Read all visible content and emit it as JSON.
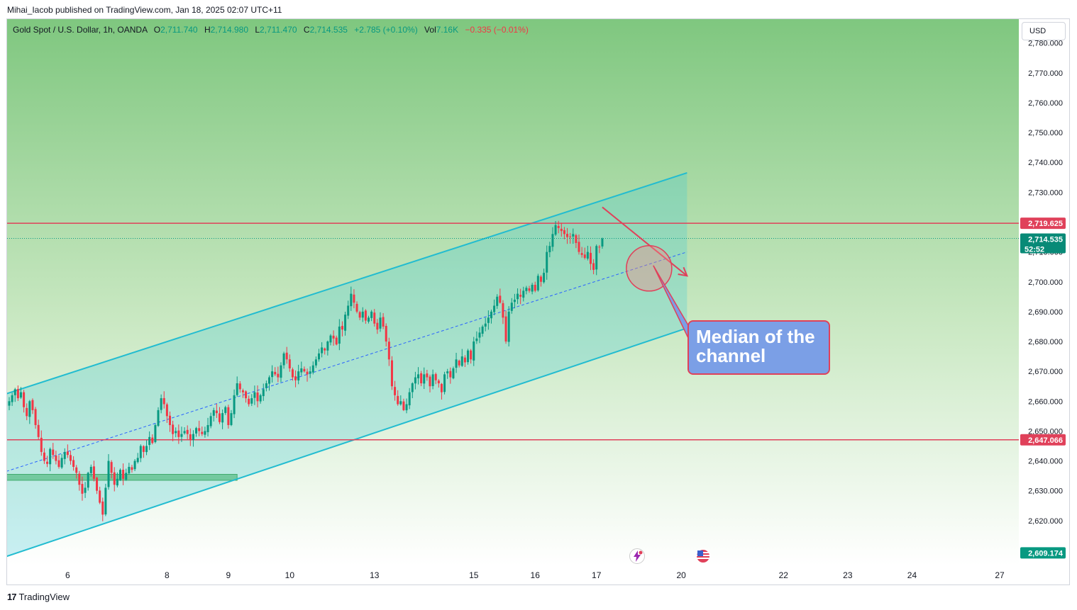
{
  "publisher": "Mihai_Iacob published on TradingView.com, Jan 18, 2025 02:07 UTC+11",
  "header": {
    "symbol": "Gold Spot / U.S. Dollar, 1h, OANDA",
    "o_label": "O",
    "o": "2,711.740",
    "h_label": "H",
    "h": "2,714.980",
    "l_label": "L",
    "l": "2,711.470",
    "c_label": "C",
    "c": "2,714.535",
    "change": "+2.785 (+0.10%)",
    "vol_label": "Vol",
    "vol": "7.16K",
    "vol_change": "−0.335 (−0.01%)"
  },
  "currency": "USD",
  "annotation": {
    "line1": "Median of the",
    "line2": "channel"
  },
  "footer": {
    "logo": "17",
    "brand": "TradingView"
  },
  "colors": {
    "up": "#089981",
    "down": "#f23645",
    "channel": "#22bcd0",
    "level": "#e0415a",
    "median": "#2962ff",
    "support_zone": "#66bb6a"
  },
  "chart_data": {
    "type": "candlestick",
    "title": "Gold Spot / U.S. Dollar, 1h, OANDA",
    "ylim": [
      2605,
      2788
    ],
    "y_ticks": [
      "2,620.000",
      "2,630.000",
      "2,640.000",
      "2,650.000",
      "2,660.000",
      "2,670.000",
      "2,680.000",
      "2,690.000",
      "2,700.000",
      "2,710.000",
      "2,720.000",
      "2,730.000",
      "2,740.000",
      "2,750.000",
      "2,760.000",
      "2,770.000",
      "2,780.000"
    ],
    "x_ticks": [
      {
        "label": "6",
        "idx": 20
      },
      {
        "label": "8",
        "idx": 54
      },
      {
        "label": "9",
        "idx": 75
      },
      {
        "label": "10",
        "idx": 96
      },
      {
        "label": "13",
        "idx": 125
      },
      {
        "label": "15",
        "idx": 159
      },
      {
        "label": "16",
        "idx": 180
      },
      {
        "label": "17",
        "idx": 201
      },
      {
        "label": "20",
        "idx": 230
      },
      {
        "label": "22",
        "idx": 265
      },
      {
        "label": "23",
        "idx": 287
      },
      {
        "label": "24",
        "idx": 309
      },
      {
        "label": "27",
        "idx": 339
      }
    ],
    "levels": [
      {
        "label": "2,719.625",
        "value": 2719.625
      },
      {
        "label": "2,647.066",
        "value": 2647.066
      }
    ],
    "last_price": {
      "label": "2,714.535",
      "value": 2714.535,
      "countdown": "52:52"
    },
    "low_marker": {
      "label": "2,609.174",
      "value": 2609.174
    },
    "channel": {
      "start_idx": 0,
      "end_idx": 232,
      "upper": [
        2662.5,
        2736.5
      ],
      "median": [
        2636.5,
        2710.0
      ],
      "lower": [
        2608.0,
        2684.5
      ]
    },
    "support_zone": {
      "start_idx": 0,
      "end_idx": 78,
      "low": 2633.5,
      "high": 2635.5
    },
    "forecast_arrow": {
      "start_idx": 203,
      "start_value": 2725.0,
      "end_idx": 232,
      "end_value": 2702.0
    },
    "highlight_circle": {
      "idx": 219,
      "value": 2704.5
    },
    "closes": [
      2660,
      2662,
      2664,
      2661,
      2663,
      2658,
      2655,
      2660,
      2657,
      2652,
      2648,
      2643,
      2640,
      2639,
      2644,
      2642,
      2640,
      2638,
      2641,
      2643,
      2642,
      2640,
      2638,
      2636,
      2632,
      2629,
      2631,
      2636,
      2638,
      2634,
      2630,
      2626,
      2622,
      2631,
      2640,
      2636,
      2632,
      2634,
      2637,
      2634,
      2636,
      2638,
      2637,
      2640,
      2641,
      2645,
      2643,
      2645,
      2648,
      2646,
      2652,
      2657,
      2661,
      2659,
      2655,
      2652,
      2649,
      2650,
      2648,
      2649,
      2650,
      2649,
      2647,
      2649,
      2651,
      2650,
      2649,
      2650,
      2652,
      2655,
      2657,
      2656,
      2653,
      2656,
      2658,
      2652,
      2656,
      2662,
      2666,
      2664,
      2663,
      2661,
      2659,
      2661,
      2663,
      2660,
      2662,
      2664,
      2666,
      2668,
      2670,
      2669,
      2668,
      2672,
      2676,
      2674,
      2671,
      2668,
      2667,
      2670,
      2671,
      2670,
      2669,
      2670,
      2672,
      2674,
      2676,
      2678,
      2677,
      2680,
      2682,
      2681,
      2679,
      2685,
      2684,
      2689,
      2692,
      2696,
      2693,
      2690,
      2688,
      2690,
      2687,
      2688,
      2690,
      2686,
      2684,
      2688,
      2685,
      2680,
      2674,
      2665,
      2662,
      2659,
      2660,
      2657,
      2659,
      2663,
      2666,
      2668,
      2669,
      2666,
      2669,
      2668,
      2665,
      2669,
      2667,
      2666,
      2663,
      2669,
      2670,
      2668,
      2671,
      2674,
      2672,
      2675,
      2673,
      2677,
      2674,
      2680,
      2681,
      2683,
      2685,
      2686,
      2688,
      2690,
      2692,
      2695,
      2693,
      2688,
      2680,
      2690,
      2693,
      2694,
      2696,
      2695,
      2697,
      2698,
      2697,
      2699,
      2697,
      2702,
      2700,
      2703,
      2710,
      2712,
      2716,
      2719,
      2718,
      2717,
      2716,
      2715,
      2715,
      2716,
      2713,
      2710,
      2709,
      2708,
      2710,
      2706,
      2704,
      2712,
      2711.7,
      2714.5
    ]
  }
}
